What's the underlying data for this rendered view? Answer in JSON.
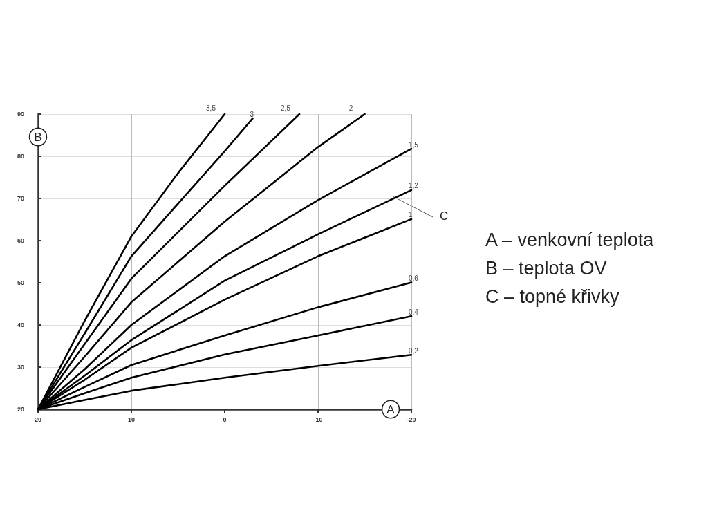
{
  "chart_data": {
    "type": "line",
    "xlabel": "A",
    "ylabel": "B",
    "annotations": [
      {
        "text": "C",
        "x": -18,
        "y": 70.5
      },
      "A – venkovní teplota",
      "B – teplota OV",
      "C – topné křivky"
    ],
    "xlim": [
      20,
      -20
    ],
    "xticks": [
      20,
      10,
      0,
      -10,
      -20
    ],
    "ylim": [
      20,
      90
    ],
    "yticks": [
      20,
      30,
      40,
      50,
      60,
      70,
      80,
      90
    ],
    "grid": true,
    "legend": false,
    "marker": "none",
    "line_style": "solid",
    "series": [
      {
        "name": "3,5",
        "color": "#000000",
        "x": [
          20,
          15,
          10,
          5,
          0
        ],
        "values": [
          20,
          41,
          61,
          76,
          90
        ]
      },
      {
        "name": "3",
        "color": "#000000",
        "x": [
          20,
          15,
          10,
          0,
          -3
        ],
        "values": [
          20,
          38,
          56.3,
          81.2,
          89
        ]
      },
      {
        "name": "2,5",
        "color": "#000000",
        "x": [
          20,
          15,
          10,
          0,
          -8
        ],
        "values": [
          20,
          35.5,
          51,
          73,
          90
        ]
      },
      {
        "name": "2",
        "color": "#000000",
        "x": [
          20,
          15,
          10,
          0,
          -10,
          -15
        ],
        "values": [
          20,
          32.5,
          45.4,
          64.5,
          82.2,
          90
        ]
      },
      {
        "name": "1,5",
        "color": "#000000",
        "x": [
          20,
          15,
          10,
          0,
          -10,
          -20
        ],
        "values": [
          20,
          29.5,
          40,
          56.3,
          69.6,
          81.8
        ]
      },
      {
        "name": "1,2",
        "color": "#000000",
        "x": [
          20,
          15,
          10,
          0,
          -10,
          -20
        ],
        "values": [
          20,
          28,
          36.4,
          50.5,
          61.5,
          72
        ]
      },
      {
        "name": "1",
        "color": "#000000",
        "x": [
          20,
          15,
          10,
          0,
          -10,
          -20
        ],
        "values": [
          20,
          27,
          34.6,
          46,
          56.3,
          65.1
        ]
      },
      {
        "name": "0,6",
        "color": "#000000",
        "x": [
          20,
          15,
          10,
          0,
          -10,
          -20
        ],
        "values": [
          20,
          25.3,
          30.5,
          37.5,
          44.2,
          50.1
        ]
      },
      {
        "name": "0,4",
        "color": "#000000",
        "x": [
          20,
          15,
          10,
          0,
          -10,
          -20
        ],
        "values": [
          20,
          23.8,
          27.5,
          33,
          37.5,
          42.1
        ]
      },
      {
        "name": "0,2",
        "color": "#000000",
        "x": [
          20,
          15,
          10,
          0,
          -10,
          -20
        ],
        "values": [
          20,
          22.2,
          24.4,
          27.5,
          30.3,
          32.9
        ]
      }
    ]
  }
}
